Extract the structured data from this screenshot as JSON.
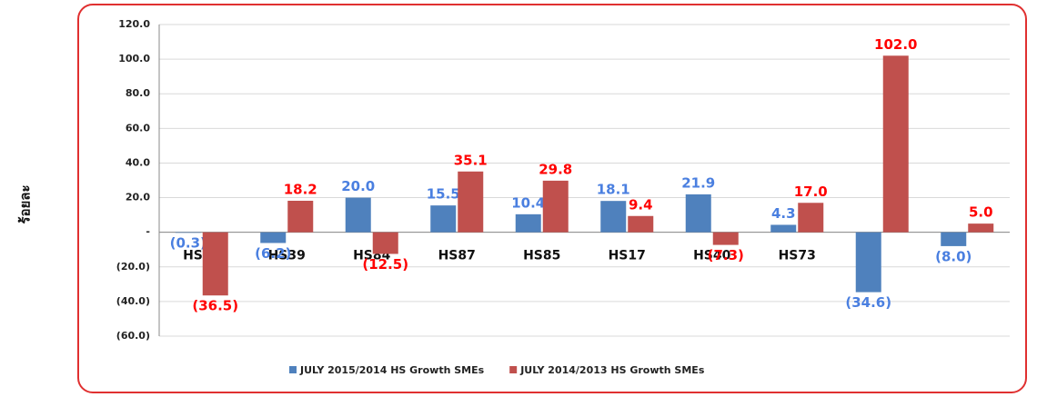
{
  "chart_data": {
    "type": "bar",
    "y_label": "ร้อยละ",
    "categories": [
      "HS71",
      "HS39",
      "HS84",
      "HS87",
      "HS85",
      "HS17",
      "HS40",
      "HS73",
      null,
      null
    ],
    "series": [
      {
        "name": "JULY 2015/2014 HS Growth SMEs",
        "color": "#4f81bd",
        "label_color": "#4a7fe0",
        "values": [
          -0.3,
          -6.2,
          20.0,
          15.5,
          10.4,
          18.1,
          21.9,
          4.3,
          -34.6,
          -8.0
        ],
        "value_labels": [
          "(0.3)",
          "(6.2)",
          "20.0",
          "15.5",
          "10.4",
          "18.1",
          "21.9",
          "4.3",
          "(34.6)",
          "(8.0)"
        ]
      },
      {
        "name": "JULY 2014/2013 HS Growth SMEs",
        "color": "#c0504d",
        "label_color": "#ff0000",
        "values": [
          -36.5,
          18.2,
          -12.5,
          35.1,
          29.8,
          9.4,
          -7.3,
          17.0,
          102.0,
          5.0
        ],
        "value_labels": [
          "(36.5)",
          "18.2",
          "(12.5)",
          "35.1",
          "29.8",
          "9.4",
          "(7.3)",
          "17.0",
          "102.0",
          "5.0"
        ]
      }
    ],
    "ylim": [
      -60,
      120
    ],
    "yticks": [
      {
        "value": -60,
        "label": "(60.0)"
      },
      {
        "value": -40,
        "label": "(40.0)"
      },
      {
        "value": -20,
        "label": "(20.0)"
      },
      {
        "value": 0,
        "label": "-"
      },
      {
        "value": 20,
        "label": "20.0"
      },
      {
        "value": 40,
        "label": "40.0"
      },
      {
        "value": 60,
        "label": "60.0"
      },
      {
        "value": 80,
        "label": "80.0"
      },
      {
        "value": 100,
        "label": "100.0"
      },
      {
        "value": 120,
        "label": "120.0"
      }
    ],
    "grid": true,
    "legend": "bottom"
  }
}
